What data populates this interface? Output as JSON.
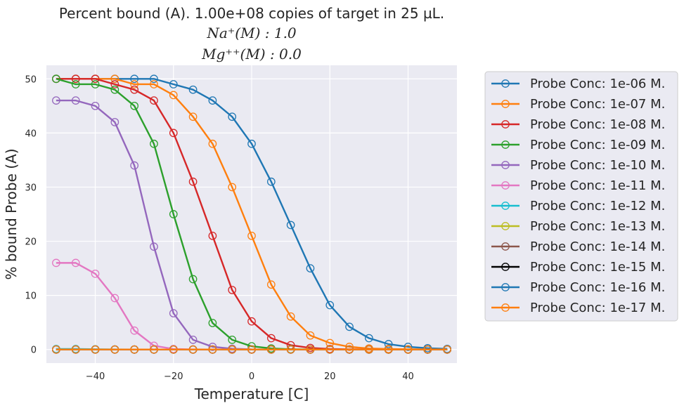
{
  "chart_data": {
    "type": "line",
    "title_lines": [
      "Percent bound (A). 1.00e+08 copies of target in 25 µL.",
      "Na⁺(M) : 1.0",
      "Mg⁺⁺(M) : 0.0"
    ],
    "xlabel": "Temperature [C]",
    "ylabel": "% bound Probe (A)",
    "xlim": [
      -52.5,
      52.5
    ],
    "ylim": [
      -2.5,
      52.5
    ],
    "xticks": [
      -40,
      -20,
      0,
      20,
      40
    ],
    "xtick_labels": [
      "−40",
      "−20",
      "0",
      "20",
      "40"
    ],
    "yticks": [
      0,
      10,
      20,
      30,
      40,
      50
    ],
    "ytick_labels": [
      "0",
      "10",
      "20",
      "30",
      "40",
      "50"
    ],
    "grid": true,
    "legend_position": "outside-right",
    "x": [
      -50,
      -45,
      -40,
      -35,
      -30,
      -25,
      -20,
      -15,
      -10,
      -5,
      0,
      5,
      10,
      15,
      20,
      25,
      30,
      35,
      40,
      45,
      50
    ],
    "series": [
      {
        "name": "Probe Conc: 1e-06 M.",
        "color": "#1f77b4",
        "values": [
          50,
          50,
          50,
          50,
          50,
          50,
          49,
          48,
          46,
          43,
          38,
          31,
          23,
          15,
          8.2,
          4.2,
          2.1,
          1.0,
          0.5,
          0.25,
          0.12
        ]
      },
      {
        "name": "Probe Conc: 1e-07 M.",
        "color": "#ff7f0e",
        "values": [
          50,
          50,
          50,
          50,
          49,
          49,
          47,
          43,
          38,
          30,
          21,
          12,
          6.1,
          2.6,
          1.2,
          0.5,
          0.2,
          0.1,
          0.05,
          0.02,
          0.01
        ]
      },
      {
        "name": "Probe Conc: 1e-08 M.",
        "color": "#d62728",
        "values": [
          50,
          50,
          50,
          49,
          48,
          46,
          40,
          31,
          21,
          11,
          5.2,
          2.1,
          0.8,
          0.3,
          0.1,
          0.04,
          0.02,
          0.01,
          0,
          0,
          0
        ]
      },
      {
        "name": "Probe Conc: 1e-09 M.",
        "color": "#2ca02c",
        "values": [
          50,
          49,
          49,
          48,
          45,
          38,
          25,
          13,
          4.9,
          1.8,
          0.6,
          0.2,
          0.06,
          0.02,
          0,
          0,
          0,
          0,
          0,
          0,
          0
        ]
      },
      {
        "name": "Probe Conc: 1e-10 M.",
        "color": "#9467bd",
        "values": [
          46,
          46,
          45,
          42,
          34,
          19,
          6.7,
          1.8,
          0.5,
          0.15,
          0.04,
          0.01,
          0,
          0,
          0,
          0,
          0,
          0,
          0,
          0,
          0
        ]
      },
      {
        "name": "Probe Conc: 1e-11 M.",
        "color": "#e377c2",
        "values": [
          16,
          16,
          14,
          9.5,
          3.5,
          0.7,
          0.1,
          0.02,
          0,
          0,
          0,
          0,
          0,
          0,
          0,
          0,
          0,
          0,
          0,
          0,
          0
        ]
      },
      {
        "name": "Probe Conc: 1e-12 M.",
        "color": "#17becf",
        "values": [
          0.1,
          0.1,
          0.05,
          0.02,
          0,
          0,
          0,
          0,
          0,
          0,
          0,
          0,
          0,
          0,
          0,
          0,
          0,
          0,
          0,
          0,
          0
        ]
      },
      {
        "name": "Probe Conc: 1e-13 M.",
        "color": "#bcbd22",
        "values": [
          0,
          0,
          0,
          0,
          0,
          0,
          0,
          0,
          0,
          0,
          0,
          0,
          0,
          0,
          0,
          0,
          0,
          0,
          0,
          0,
          0
        ]
      },
      {
        "name": "Probe Conc: 1e-14 M.",
        "color": "#8c564b",
        "values": [
          0,
          0,
          0,
          0,
          0,
          0,
          0,
          0,
          0,
          0,
          0,
          0,
          0,
          0,
          0,
          0,
          0,
          0,
          0,
          0,
          0
        ]
      },
      {
        "name": "Probe Conc: 1e-15 M.",
        "color": "#000000",
        "values": [
          0,
          0,
          0,
          0,
          0,
          0,
          0,
          0,
          0,
          0,
          0,
          0,
          0,
          0,
          0,
          0,
          0,
          0,
          0,
          0,
          0
        ]
      },
      {
        "name": "Probe Conc: 1e-16 M.",
        "color": "#1f77b4",
        "values": [
          0,
          0,
          0,
          0,
          0,
          0,
          0,
          0,
          0,
          0,
          0,
          0,
          0,
          0,
          0,
          0,
          0,
          0,
          0,
          0,
          0
        ]
      },
      {
        "name": "Probe Conc: 1e-17 M.",
        "color": "#ff7f0e",
        "values": [
          0,
          0,
          0,
          0,
          0,
          0,
          0,
          0,
          0,
          0,
          0,
          0,
          0,
          0,
          0,
          0,
          0,
          0,
          0,
          0,
          0
        ]
      }
    ],
    "colors": {
      "plot_background": "#eaeaf2",
      "grid": "#ffffff",
      "legend_background": "#eaeaf2",
      "legend_border": "#cccccc"
    }
  }
}
